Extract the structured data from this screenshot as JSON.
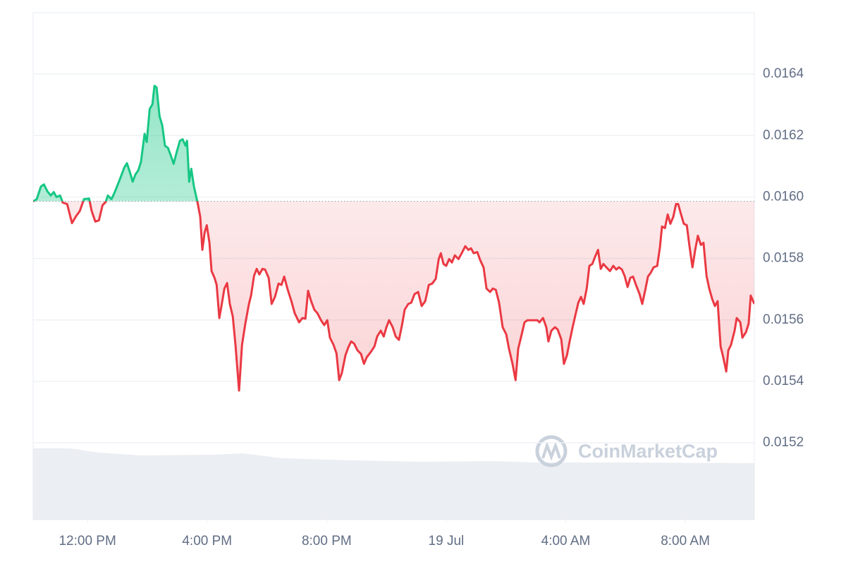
{
  "chart_data": {
    "type": "line",
    "watermark": "CoinMarketCap",
    "up_color": "#16c784",
    "down_color": "#ea3943",
    "baseline": 0.015986,
    "grid": true,
    "xlim": [
      10.18,
      34.31
    ],
    "xticks": [
      {
        "value": 12,
        "label": "12:00 PM"
      },
      {
        "value": 16,
        "label": "4:00 PM"
      },
      {
        "value": 20,
        "label": "8:00 PM"
      },
      {
        "value": 24,
        "label": "19 Jul"
      },
      {
        "value": 28,
        "label": "4:00 AM"
      },
      {
        "value": 32,
        "label": "8:00 AM"
      }
    ],
    "ylim": [
      0.01495,
      0.0166
    ],
    "yticks": [
      0.0152,
      0.0154,
      0.0156,
      0.0158,
      {
        "value": 0.016,
        "label": "0.0160"
      },
      0.0162,
      0.0164
    ],
    "x": [
      10.18,
      10.3,
      10.44,
      10.54,
      10.66,
      10.77,
      10.87,
      10.96,
      11.08,
      11.17,
      11.32,
      11.48,
      11.62,
      11.74,
      11.88,
      12.05,
      12.14,
      12.26,
      12.38,
      12.5,
      12.61,
      12.68,
      12.8,
      12.92,
      13.08,
      13.23,
      13.32,
      13.42,
      13.51,
      13.6,
      13.7,
      13.79,
      13.91,
      13.98,
      14.08,
      14.17,
      14.24,
      14.31,
      14.41,
      14.5,
      14.59,
      14.69,
      14.78,
      14.88,
      14.97,
      15.09,
      15.18,
      15.28,
      15.33,
      15.4,
      15.47,
      15.56,
      15.68,
      15.77,
      15.84,
      15.92,
      15.99,
      16.08,
      16.15,
      16.25,
      16.32,
      16.41,
      16.48,
      16.58,
      16.67,
      16.76,
      16.86,
      16.95,
      17.07,
      17.17,
      17.28,
      17.4,
      17.47,
      17.57,
      17.66,
      17.75,
      17.85,
      17.94,
      18.06,
      18.16,
      18.27,
      18.39,
      18.49,
      18.58,
      18.7,
      18.82,
      18.93,
      19.08,
      19.19,
      19.29,
      19.38,
      19.48,
      19.59,
      19.69,
      19.81,
      19.92,
      20.02,
      20.11,
      20.23,
      20.33,
      20.42,
      20.51,
      20.63,
      20.73,
      20.82,
      20.92,
      21.03,
      21.15,
      21.25,
      21.34,
      21.48,
      21.6,
      21.69,
      21.81,
      21.91,
      22.0,
      22.09,
      22.21,
      22.31,
      22.42,
      22.52,
      22.61,
      22.73,
      22.83,
      22.94,
      23.06,
      23.18,
      23.3,
      23.42,
      23.53,
      23.65,
      23.75,
      23.82,
      23.91,
      24.0,
      24.1,
      24.19,
      24.29,
      24.41,
      24.52,
      24.64,
      24.74,
      24.83,
      24.92,
      25.04,
      25.14,
      25.25,
      25.35,
      25.47,
      25.56,
      25.66,
      25.77,
      25.89,
      26.01,
      26.1,
      26.22,
      26.32,
      26.41,
      26.5,
      26.62,
      26.72,
      26.83,
      26.95,
      27.05,
      27.12,
      27.24,
      27.35,
      27.42,
      27.52,
      27.64,
      27.73,
      27.85,
      27.94,
      28.04,
      28.13,
      28.23,
      28.32,
      28.42,
      28.51,
      28.6,
      28.7,
      28.79,
      28.89,
      28.98,
      29.08,
      29.17,
      29.26,
      29.36,
      29.48,
      29.59,
      29.69,
      29.78,
      29.88,
      29.97,
      30.07,
      30.16,
      30.25,
      30.35,
      30.47,
      30.56,
      30.66,
      30.75,
      30.84,
      30.94,
      31.06,
      31.15,
      31.22,
      31.32,
      31.41,
      31.5,
      31.6,
      31.69,
      31.76,
      31.86,
      31.95,
      32.05,
      32.14,
      32.24,
      32.33,
      32.42,
      32.52,
      32.61,
      32.71,
      32.8,
      32.9,
      32.99,
      33.08,
      33.18,
      33.27,
      33.37,
      33.44,
      33.53,
      33.65,
      33.72,
      33.84,
      33.91,
      34.03,
      34.12,
      34.19,
      34.31
    ],
    "values": [
      0.015986,
      0.015993,
      0.016034,
      0.016041,
      0.016018,
      0.016005,
      0.016016,
      0.016,
      0.016005,
      0.015982,
      0.015977,
      0.015915,
      0.015938,
      0.015954,
      0.015993,
      0.015995,
      0.015954,
      0.01592,
      0.015924,
      0.015973,
      0.015984,
      0.016005,
      0.015993,
      0.016018,
      0.016057,
      0.016096,
      0.01611,
      0.01608,
      0.01605,
      0.016073,
      0.016087,
      0.016115,
      0.016206,
      0.016179,
      0.016286,
      0.016302,
      0.016362,
      0.016357,
      0.016263,
      0.016234,
      0.016167,
      0.01616,
      0.016137,
      0.016108,
      0.016142,
      0.016183,
      0.016188,
      0.016167,
      0.016183,
      0.01605,
      0.016092,
      0.016034,
      0.015982,
      0.015936,
      0.015828,
      0.015885,
      0.015908,
      0.015851,
      0.015759,
      0.015737,
      0.015714,
      0.015606,
      0.015645,
      0.015702,
      0.01572,
      0.015652,
      0.015611,
      0.015519,
      0.01537,
      0.015519,
      0.015588,
      0.015652,
      0.015679,
      0.015743,
      0.015766,
      0.015748,
      0.015766,
      0.015764,
      0.015737,
      0.015652,
      0.015675,
      0.015718,
      0.015714,
      0.015741,
      0.015698,
      0.015661,
      0.015622,
      0.015592,
      0.015606,
      0.015604,
      0.015695,
      0.015661,
      0.015633,
      0.015622,
      0.015599,
      0.015583,
      0.015599,
      0.015542,
      0.015519,
      0.015491,
      0.015404,
      0.015427,
      0.015485,
      0.015512,
      0.01553,
      0.015523,
      0.015501,
      0.015489,
      0.015457,
      0.015478,
      0.015496,
      0.015514,
      0.015546,
      0.015565,
      0.015546,
      0.015576,
      0.015599,
      0.015576,
      0.015546,
      0.015535,
      0.015583,
      0.015633,
      0.015652,
      0.015656,
      0.015684,
      0.015691,
      0.015645,
      0.015661,
      0.015714,
      0.015718,
      0.015734,
      0.015798,
      0.015817,
      0.015782,
      0.015776,
      0.015798,
      0.015787,
      0.01581,
      0.015798,
      0.015817,
      0.01584,
      0.015828,
      0.015833,
      0.015817,
      0.015821,
      0.015794,
      0.015771,
      0.015702,
      0.015691,
      0.015702,
      0.015698,
      0.015656,
      0.015576,
      0.015553,
      0.015507,
      0.015457,
      0.015404,
      0.015507,
      0.015542,
      0.015592,
      0.015599,
      0.015599,
      0.015599,
      0.015599,
      0.015592,
      0.015606,
      0.015576,
      0.01553,
      0.015565,
      0.015576,
      0.015569,
      0.015537,
      0.015457,
      0.015485,
      0.01553,
      0.015576,
      0.015615,
      0.015656,
      0.015675,
      0.015652,
      0.015702,
      0.015776,
      0.015782,
      0.015805,
      0.015828,
      0.015766,
      0.015782,
      0.015771,
      0.015759,
      0.015776,
      0.015764,
      0.015771,
      0.015764,
      0.015743,
      0.015707,
      0.015737,
      0.015741,
      0.015714,
      0.015684,
      0.015652,
      0.015698,
      0.015741,
      0.015753,
      0.015771,
      0.015776,
      0.015835,
      0.015904,
      0.015899,
      0.015943,
      0.015913,
      0.015936,
      0.015977,
      0.015977,
      0.015943,
      0.015913,
      0.015908,
      0.01584,
      0.015771,
      0.015828,
      0.015874,
      0.015844,
      0.015851,
      0.015743,
      0.015702,
      0.015668,
      0.015645,
      0.015661,
      0.015514,
      0.015478,
      0.015432,
      0.015501,
      0.015519,
      0.015565,
      0.015606,
      0.015592,
      0.015542,
      0.01556,
      0.015588,
      0.015679,
      0.015652
    ]
  }
}
